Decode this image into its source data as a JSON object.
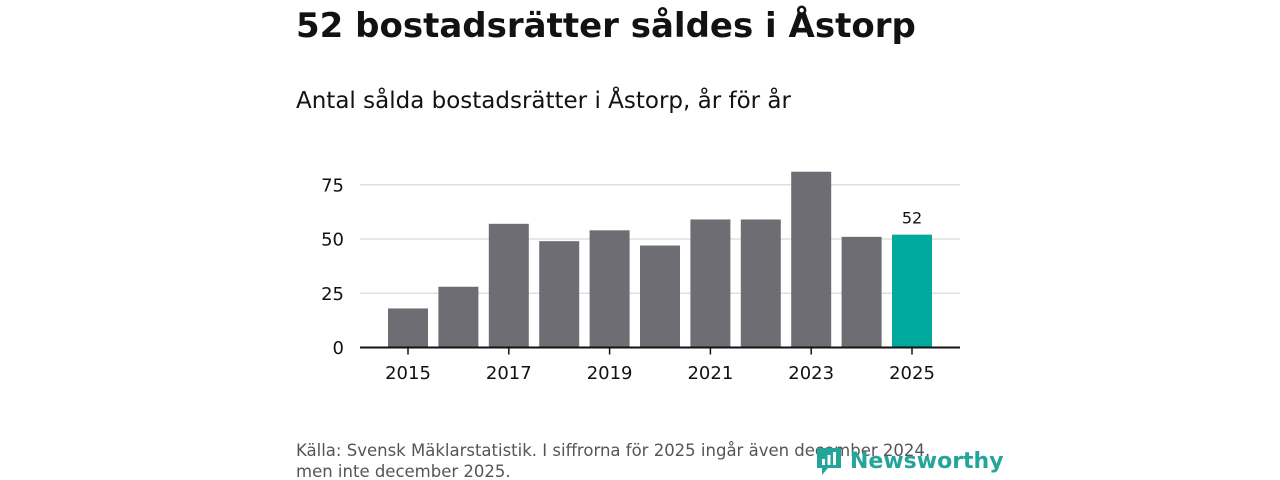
{
  "title": "52 bostadsrätter såldes i Åstorp",
  "subtitle": "Antal sålda bostadsrätter i Åstorp, år för år",
  "source_line1": "Källa: Svensk Mäklarstatistik. I siffrorna för 2025 ingår även december 2024,",
  "source_line2": "men inte december 2025.",
  "logo_text": "Newsworthy",
  "colors": {
    "bar": "#6e6d73",
    "highlight": "#00a99d",
    "grid": "#d9d9d9",
    "axis": "#121212",
    "logo": "#24a59a"
  },
  "chart_data": {
    "type": "bar",
    "title": "52 bostadsrätter såldes i Åstorp",
    "subtitle": "Antal sålda bostadsrätter i Åstorp, år för år",
    "xlabel": "",
    "ylabel": "",
    "categories": [
      "2015",
      "2016",
      "2017",
      "2018",
      "2019",
      "2020",
      "2021",
      "2022",
      "2023",
      "2024",
      "2025"
    ],
    "values": [
      18,
      28,
      57,
      49,
      54,
      47,
      59,
      59,
      81,
      51,
      52
    ],
    "highlight_index": 10,
    "data_labels": [
      {
        "index": 10,
        "text": "52"
      }
    ],
    "x_tick_labels": [
      "2015",
      "2017",
      "2019",
      "2021",
      "2023",
      "2025"
    ],
    "y_ticks": [
      0,
      25,
      50,
      75
    ],
    "ylim": [
      0,
      90
    ],
    "grid": true
  }
}
